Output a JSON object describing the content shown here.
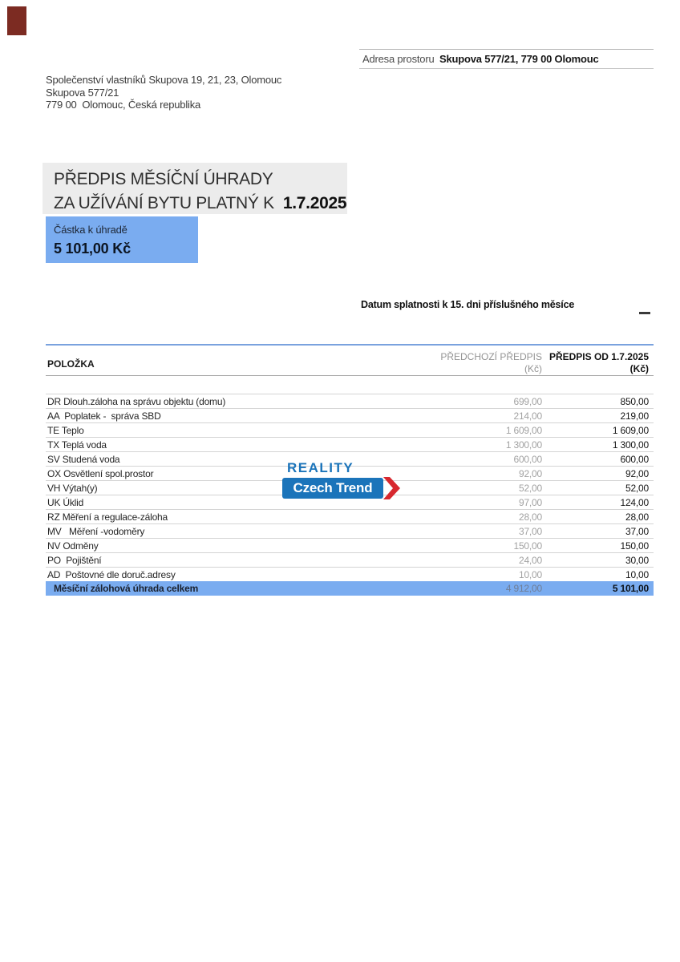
{
  "colors": {
    "accent_blue": "#7aacf0",
    "title_gray": "#ececec",
    "logo_maroon": "#7c2b22",
    "brand_blue": "#1b74ba",
    "brand_red": "#d7282f",
    "table_top_line": "#7aa2de"
  },
  "sender": {
    "line1": "Společenství vlastníků Skupova 19, 21, 23, Olomouc",
    "line2": "Skupova 577/21",
    "line3": "779 00  Olomouc, Česká republika"
  },
  "address_box": {
    "label": "Adresa prostoru",
    "value": "Skupova 577/21, 779 00 Olomouc"
  },
  "title": {
    "line1": "PŘEDPIS MĚSÍČNÍ ÚHRADY",
    "line2": "ZA UŽÍVÁNÍ BYTU PLATNÝ K",
    "date": "1.7.2025"
  },
  "amount_box": {
    "label": "Částka k úhradě",
    "value": "5 101,00 Kč"
  },
  "due_note": "Datum splatnosti k 15. dni příslušného měsíce",
  "table": {
    "headers": {
      "item": "POLOŽKA",
      "prev_line1": "PŘEDCHOZÍ PŘEDPIS",
      "prev_line2": "(Kč)",
      "new_line1": "PŘEDPIS OD 1.7.2025",
      "new_line2": "(Kč)"
    },
    "rows": [
      {
        "item": "DR Dlouh.záloha na správu objektu (domu)",
        "prev": "699,00",
        "new": "850,00"
      },
      {
        "item": "AA  Poplatek -  správa SBD",
        "prev": "214,00",
        "new": "219,00"
      },
      {
        "item": "TE Teplo",
        "prev": "1 609,00",
        "new": "1 609,00"
      },
      {
        "item": "TX Teplá voda",
        "prev": "1 300,00",
        "new": "1 300,00"
      },
      {
        "item": "SV Studená voda",
        "prev": "600,00",
        "new": "600,00"
      },
      {
        "item": "OX Osvětlení spol.prostor",
        "prev": "92,00",
        "new": "92,00"
      },
      {
        "item": "VH Výtah(y)",
        "prev": "52,00",
        "new": "52,00"
      },
      {
        "item": "UK Úklid",
        "prev": "97,00",
        "new": "124,00"
      },
      {
        "item": "RZ Měření a regulace-záloha",
        "prev": "28,00",
        "new": "28,00"
      },
      {
        "item": "MV   Měření -vodoměry",
        "prev": "37,00",
        "new": "37,00"
      },
      {
        "item": "NV Odměny",
        "prev": "150,00",
        "new": "150,00"
      },
      {
        "item": "PO  Pojištění",
        "prev": "24,00",
        "new": "30,00"
      },
      {
        "item": "AD  Poštovné dle doruč.adresy",
        "prev": "10,00",
        "new": "10,00"
      }
    ],
    "total": {
      "item": "Měsíční zálohová úhrada celkem",
      "prev": "4 912,00",
      "new": "5 101,00"
    }
  },
  "watermark": {
    "line1": "REALITY",
    "line2": "Czech Trend"
  }
}
